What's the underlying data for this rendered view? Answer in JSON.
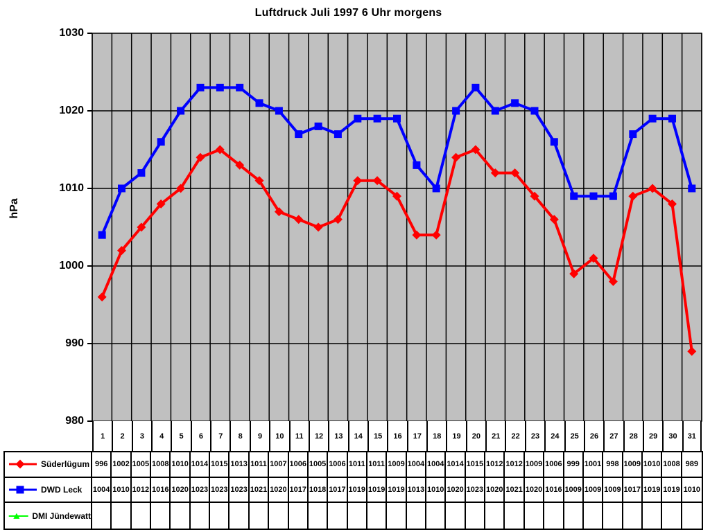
{
  "title": "Luftdruck Juli 1997 6 Uhr morgens",
  "chart_data": {
    "type": "line",
    "title": "Luftdruck Juli 1997 6 Uhr morgens",
    "xlabel": "",
    "ylabel": "hPa",
    "ylim": [
      980,
      1030
    ],
    "ytick_step": 10,
    "grid": true,
    "plot_bg": "#c0c0c0",
    "grid_color": "#000000",
    "legend_position": "table-left",
    "categories": [
      1,
      2,
      3,
      4,
      5,
      6,
      7,
      8,
      9,
      10,
      11,
      12,
      13,
      14,
      15,
      16,
      17,
      18,
      19,
      20,
      21,
      22,
      23,
      24,
      25,
      26,
      27,
      28,
      29,
      30,
      31
    ],
    "series": [
      {
        "name": "Süderlügum",
        "color": "#ff0000",
        "marker": "diamond",
        "values": [
          996,
          1002,
          1005,
          1008,
          1010,
          1014,
          1015,
          1013,
          1011,
          1007,
          1006,
          1005,
          1006,
          1011,
          1011,
          1009,
          1004,
          1004,
          1014,
          1015,
          1012,
          1012,
          1009,
          1006,
          999,
          1001,
          998,
          1009,
          1010,
          1008,
          989
        ]
      },
      {
        "name": "DWD Leck",
        "color": "#0000ff",
        "marker": "square",
        "values": [
          1004,
          1010,
          1012,
          1016,
          1020,
          1023,
          1023,
          1023,
          1021,
          1020,
          1017,
          1018,
          1017,
          1019,
          1019,
          1019,
          1013,
          1010,
          1020,
          1023,
          1020,
          1021,
          1020,
          1016,
          1009,
          1009,
          1009,
          1017,
          1019,
          1019,
          1010
        ]
      },
      {
        "name": "DMI Jündewatt",
        "color": "#00ff00",
        "marker": "triangle",
        "values": []
      }
    ]
  }
}
